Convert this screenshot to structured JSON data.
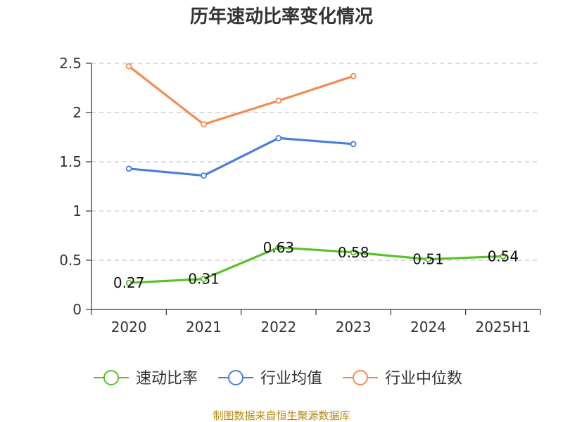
{
  "chart_data": {
    "type": "line",
    "title": "历年速动比率变化情况",
    "categories": [
      "2020",
      "2021",
      "2022",
      "2023",
      "2024",
      "2025H1"
    ],
    "ylim": [
      0,
      2.5
    ],
    "y_ticks": [
      "0",
      "0.5",
      "1",
      "1.5",
      "2",
      "2.5"
    ],
    "grid": true,
    "legend_position": "bottom",
    "series": [
      {
        "name": "速动比率",
        "color": "#5ac02c",
        "values": [
          0.27,
          0.31,
          0.63,
          0.58,
          0.51,
          0.54
        ],
        "labels": [
          "0.27",
          "0.31",
          "0.63",
          "0.58",
          "0.51",
          "0.54"
        ]
      },
      {
        "name": "行业均值",
        "color": "#4a7fd8",
        "values": [
          1.43,
          1.36,
          1.74,
          1.68,
          null,
          null
        ]
      },
      {
        "name": "行业中位数",
        "color": "#f28c55",
        "values": [
          2.47,
          1.88,
          2.12,
          2.37,
          null,
          null
        ]
      }
    ]
  },
  "source_note": "制图数据来自恒生聚源数据库"
}
